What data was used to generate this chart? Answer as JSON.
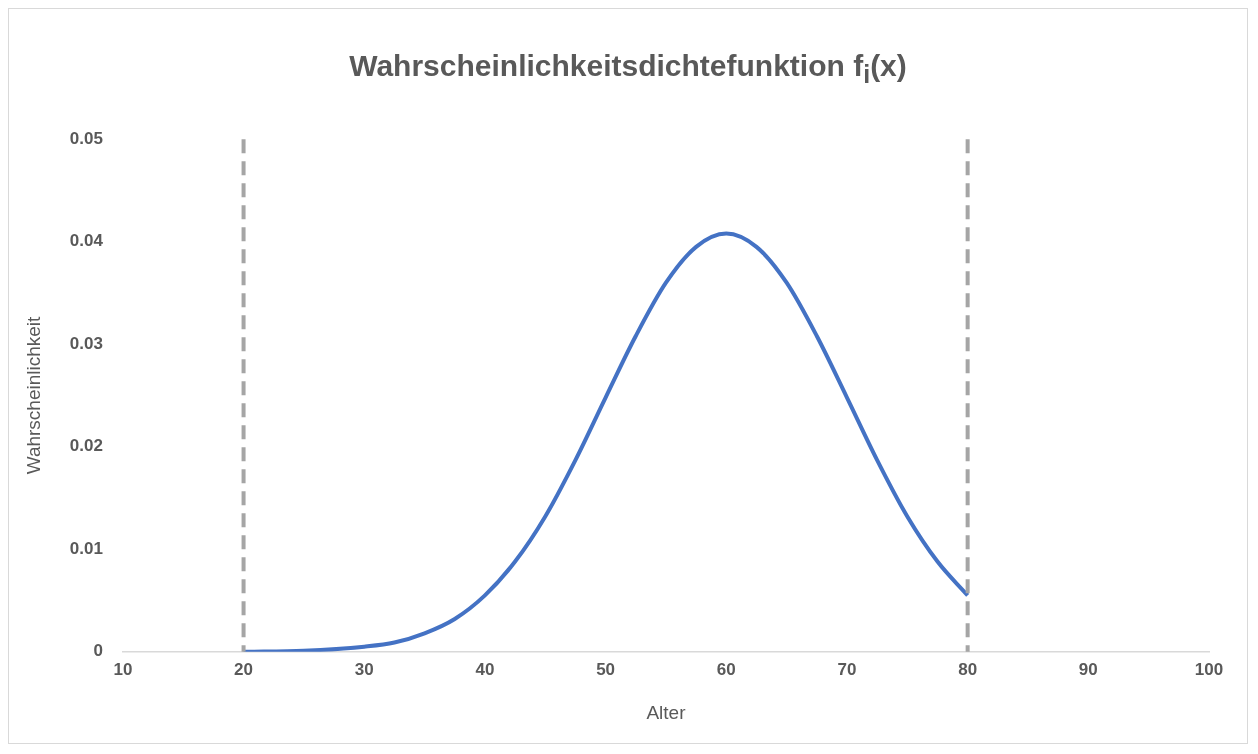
{
  "chart_data": {
    "type": "line",
    "title": "Wahrscheinlichkeitsdichtefunktion f$_{i}$(x)",
    "xlabel": "Alter",
    "ylabel": "Wahrscheinlichkeit",
    "x": [
      20,
      25,
      30,
      32.5,
      35,
      37.5,
      40,
      42.5,
      45,
      47.5,
      50,
      52.5,
      55,
      57.5,
      60,
      62.5,
      65,
      67.5,
      70,
      72.5,
      75,
      77.5,
      80
    ],
    "series": [
      {
        "color": "#4472c4",
        "values": [
          0,
          0.0001,
          0.0005,
          0.0009,
          0.0018,
          0.0032,
          0.0055,
          0.0088,
          0.0132,
          0.0187,
          0.0248,
          0.0308,
          0.036,
          0.0395,
          0.0408,
          0.0395,
          0.036,
          0.0308,
          0.0248,
          0.0187,
          0.0132,
          0.0088,
          0.0055
        ]
      }
    ],
    "xlim": [
      10,
      100
    ],
    "xticks": [
      10,
      20,
      30,
      40,
      50,
      60,
      70,
      80,
      90,
      100
    ],
    "ylim": [
      0,
      0.05
    ],
    "yticks": [
      0,
      0.01,
      0.02,
      0.03,
      0.04,
      0.05
    ],
    "ref_lines": [
      {
        "axis": "x",
        "value": 20,
        "color": "#a5a5a5",
        "line_style": "dashed"
      },
      {
        "axis": "x",
        "value": 80,
        "color": "#a5a5a5",
        "line_style": "dashed"
      }
    ],
    "grid": false,
    "legend": false,
    "marker": "none",
    "line_style": "solid"
  }
}
